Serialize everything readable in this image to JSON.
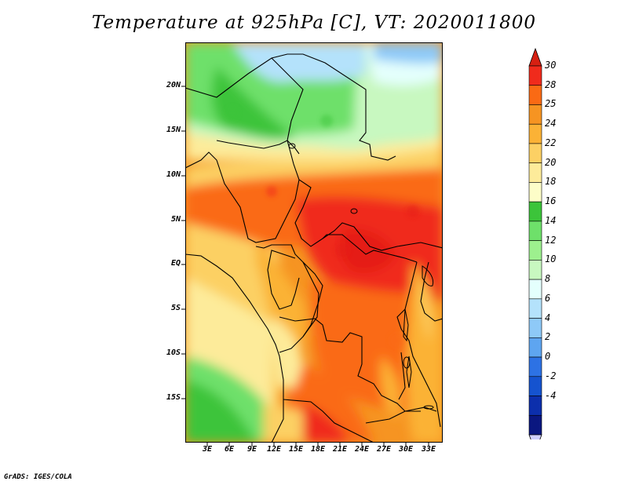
{
  "title": "Temperature at 925hPa [C], VT: 2020011800",
  "credit": "GrADS: IGES/COLA",
  "lat_labels": [
    "20N",
    "15N",
    "10N",
    "5N",
    "EQ",
    "5S",
    "10S",
    "15S"
  ],
  "lon_labels": [
    "3E",
    "6E",
    "9E",
    "12E",
    "15E",
    "18E",
    "21E",
    "24E",
    "27E",
    "30E",
    "33E"
  ],
  "colorbar": {
    "labels": [
      "30",
      "28",
      "25",
      "24",
      "22",
      "20",
      "18",
      "16",
      "14",
      "12",
      "10",
      "8",
      "6",
      "4",
      "2",
      "0",
      "-2",
      "-4"
    ],
    "colors": [
      "#f02b1c",
      "#fa6a14",
      "#f69422",
      "#fbb236",
      "#fcd064",
      "#fdeb9a",
      "#fdfdc8",
      "#3cc43a",
      "#6ee06a",
      "#9df08e",
      "#c8f8c0",
      "#e4fffd",
      "#b4e2fb",
      "#8ec9f7",
      "#5ea5f0",
      "#2d72e4",
      "#1553cf",
      "#0c2fac",
      "#0a1780"
    ],
    "top_arrow": "#d62012",
    "bottom_arrow": "#cfcfff"
  }
}
